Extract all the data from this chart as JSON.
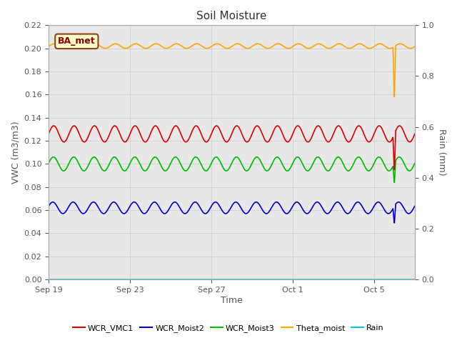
{
  "title": "Soil Moisture",
  "ylabel_left": "VWC (m3/m3)",
  "ylabel_right": "Rain (mm)",
  "xlabel": "Time",
  "ylim_left": [
    0.0,
    0.22
  ],
  "ylim_right": [
    0.0,
    1.0
  ],
  "bg_color": "#e8e8e8",
  "fig_color": "#ffffff",
  "annotation_text": "BA_met",
  "annotation_bg": "#ffffcc",
  "annotation_border": "#8b4513",
  "n_days": 18,
  "n_points": 2000,
  "cycles_per_day": 1.0,
  "series": {
    "WCR_VMC1": {
      "color": "#dd0000",
      "mean": 0.126,
      "amp": 0.007,
      "phase": 0.0
    },
    "WCR_Moist2": {
      "color": "#0000cc",
      "mean": 0.062,
      "amp": 0.005,
      "phase": 0.3
    },
    "WCR_Moist3": {
      "color": "#00bb00",
      "mean": 0.1,
      "amp": 0.006,
      "phase": 0.1
    },
    "Theta_moist": {
      "color": "#ffa500",
      "mean": 0.202,
      "amp": 0.002,
      "phase": -0.2
    },
    "Rain": {
      "color": "#00cccc",
      "mean": 0.0,
      "amp": 0.0,
      "phase": 0.0
    }
  },
  "spike_day": 17.0,
  "spikes": {
    "WCR_VMC1": {
      "low": 0.095,
      "high": 0.13
    },
    "WCR_Moist2": {
      "low": 0.049,
      "high": 0.065
    },
    "WCR_Moist3": {
      "low": 0.084,
      "high": 0.1
    },
    "Theta_moist": {
      "low": 0.158,
      "high": 0.202
    }
  },
  "xtick_positions": [
    0,
    4,
    8,
    12,
    16
  ],
  "xtick_labels": [
    "Sep 19",
    "Sep 23",
    "Sep 27",
    "Oct 1",
    "Oct 5"
  ],
  "yticks_left": [
    0.0,
    0.02,
    0.04,
    0.06,
    0.08,
    0.1,
    0.12,
    0.14,
    0.16,
    0.18,
    0.2,
    0.22
  ],
  "yticks_right": [
    0.0,
    0.2,
    0.4,
    0.6,
    0.8,
    1.0
  ],
  "legend_labels": [
    "WCR_VMC1",
    "WCR_Moist2",
    "WCR_Moist3",
    "Theta_moist",
    "Rain"
  ],
  "legend_colors": [
    "#dd0000",
    "#0000cc",
    "#00bb00",
    "#ffa500",
    "#00cccc"
  ],
  "grid_color": "#cccccc",
  "tick_color": "#555555",
  "title_fontsize": 11,
  "label_fontsize": 9,
  "tick_fontsize": 8,
  "legend_fontsize": 8,
  "linewidth": 1.2
}
